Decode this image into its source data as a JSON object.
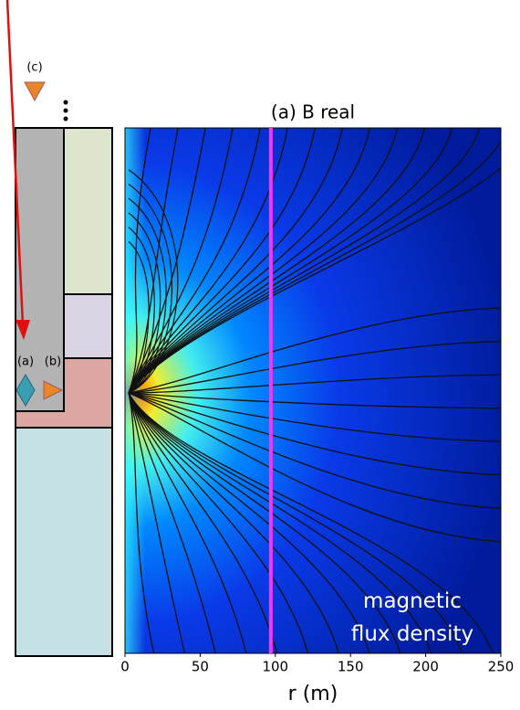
{
  "chart_data": {
    "type": "field",
    "title": "(a) B real",
    "xlabel": "r (m)",
    "xlim": [
      0,
      250
    ],
    "xticks": [
      0,
      50,
      100,
      150,
      200,
      250
    ],
    "annotation": "magnetic flux density",
    "marker_line": {
      "x": 97,
      "color": "#ff33ff"
    }
  },
  "schematic": {
    "labels": [
      "(c)",
      "(a)",
      "(b)"
    ]
  }
}
